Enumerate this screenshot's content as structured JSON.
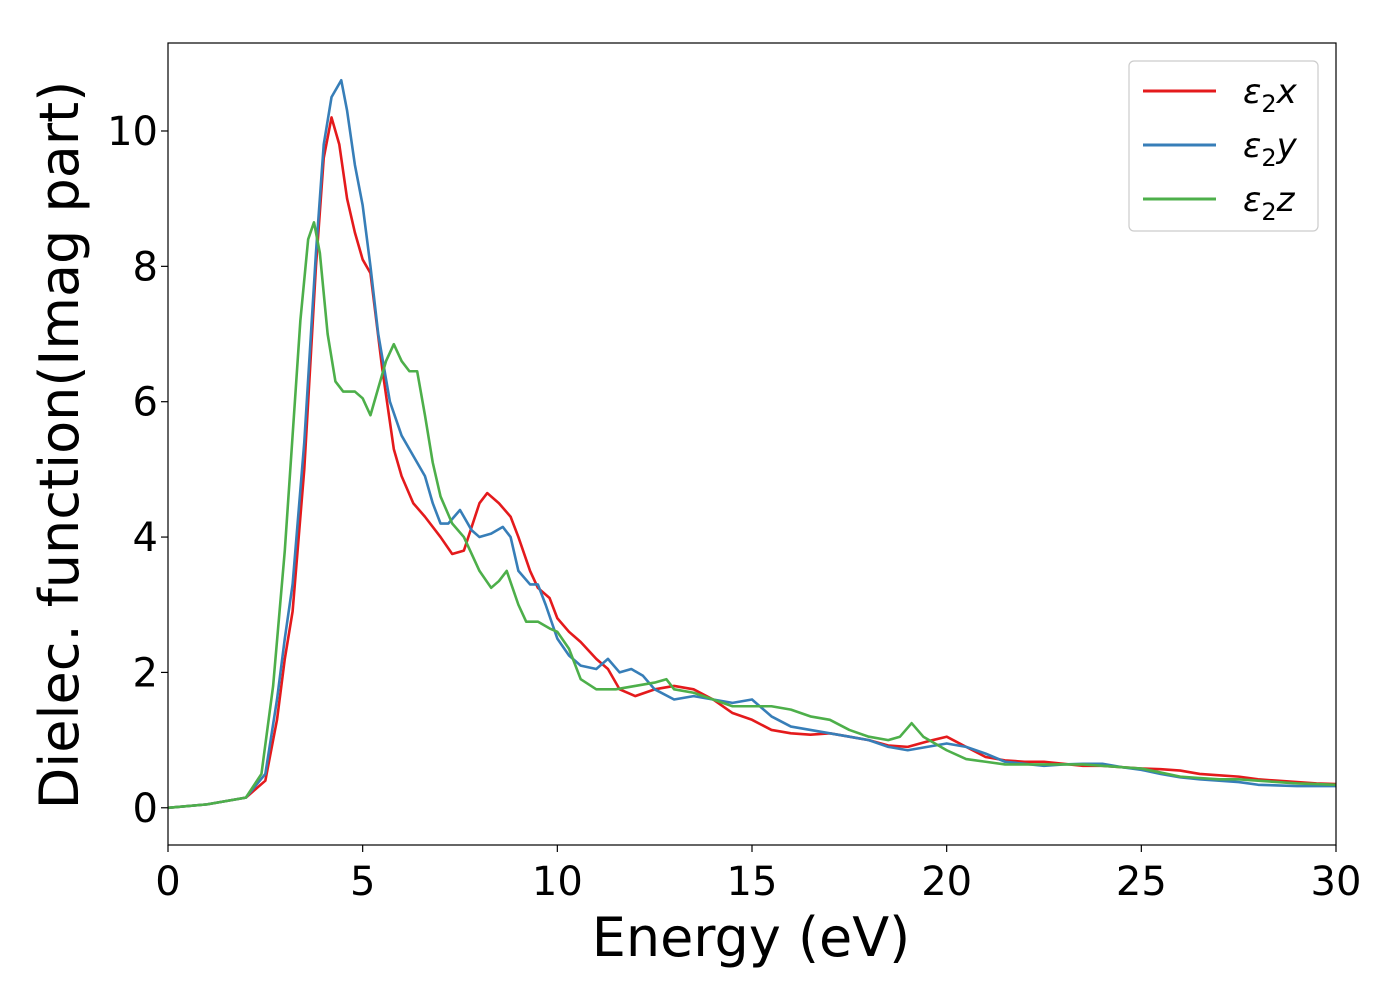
{
  "chart_data": {
    "type": "line",
    "title": "",
    "xlabel": "Energy (eV)",
    "ylabel": "Dielec. function(Imag part)",
    "xlim": [
      0,
      30
    ],
    "ylim": [
      -0.55,
      11.3
    ],
    "xticks": [
      0,
      5,
      10,
      15,
      20,
      25,
      30
    ],
    "yticks": [
      0,
      2,
      4,
      6,
      8,
      10
    ],
    "grid": false,
    "legend_position": "top-right",
    "series": [
      {
        "name": "ε₂x",
        "legend_main": "ε",
        "legend_sub": "2",
        "legend_axis": "x",
        "color": "#e41a1c",
        "points": [
          [
            0,
            0
          ],
          [
            1,
            0.05
          ],
          [
            2,
            0.15
          ],
          [
            2.5,
            0.4
          ],
          [
            2.8,
            1.3
          ],
          [
            3.0,
            2.2
          ],
          [
            3.2,
            2.9
          ],
          [
            3.5,
            5.0
          ],
          [
            3.8,
            8.0
          ],
          [
            4.0,
            9.6
          ],
          [
            4.2,
            10.2
          ],
          [
            4.4,
            9.8
          ],
          [
            4.6,
            9.0
          ],
          [
            4.8,
            8.5
          ],
          [
            5.0,
            8.1
          ],
          [
            5.2,
            7.9
          ],
          [
            5.5,
            6.5
          ],
          [
            5.8,
            5.3
          ],
          [
            6.0,
            4.9
          ],
          [
            6.3,
            4.5
          ],
          [
            6.6,
            4.3
          ],
          [
            7.0,
            4.0
          ],
          [
            7.3,
            3.75
          ],
          [
            7.6,
            3.8
          ],
          [
            8.0,
            4.5
          ],
          [
            8.2,
            4.65
          ],
          [
            8.5,
            4.5
          ],
          [
            8.8,
            4.3
          ],
          [
            9.0,
            4.0
          ],
          [
            9.3,
            3.5
          ],
          [
            9.5,
            3.25
          ],
          [
            9.8,
            3.1
          ],
          [
            10.0,
            2.8
          ],
          [
            10.3,
            2.6
          ],
          [
            10.6,
            2.45
          ],
          [
            11.0,
            2.2
          ],
          [
            11.3,
            2.05
          ],
          [
            11.6,
            1.75
          ],
          [
            12.0,
            1.65
          ],
          [
            12.5,
            1.75
          ],
          [
            13.0,
            1.8
          ],
          [
            13.5,
            1.75
          ],
          [
            14.0,
            1.6
          ],
          [
            14.5,
            1.4
          ],
          [
            15.0,
            1.3
          ],
          [
            15.5,
            1.15
          ],
          [
            16.0,
            1.1
          ],
          [
            16.5,
            1.08
          ],
          [
            17.0,
            1.1
          ],
          [
            17.5,
            1.05
          ],
          [
            18.0,
            1.0
          ],
          [
            18.5,
            0.92
          ],
          [
            19.0,
            0.9
          ],
          [
            19.5,
            0.98
          ],
          [
            20.0,
            1.05
          ],
          [
            20.5,
            0.9
          ],
          [
            21.0,
            0.75
          ],
          [
            21.5,
            0.7
          ],
          [
            22.0,
            0.68
          ],
          [
            22.5,
            0.68
          ],
          [
            23.0,
            0.65
          ],
          [
            23.5,
            0.62
          ],
          [
            24.0,
            0.62
          ],
          [
            24.5,
            0.6
          ],
          [
            25.0,
            0.58
          ],
          [
            25.5,
            0.57
          ],
          [
            26.0,
            0.55
          ],
          [
            26.5,
            0.5
          ],
          [
            27.0,
            0.48
          ],
          [
            27.5,
            0.46
          ],
          [
            28.0,
            0.42
          ],
          [
            28.5,
            0.4
          ],
          [
            29.0,
            0.38
          ],
          [
            29.5,
            0.36
          ],
          [
            30.0,
            0.35
          ]
        ]
      },
      {
        "name": "ε₂y",
        "legend_main": "ε",
        "legend_sub": "2",
        "legend_axis": "y",
        "color": "#377eb8",
        "points": [
          [
            0,
            0
          ],
          [
            1,
            0.05
          ],
          [
            2,
            0.15
          ],
          [
            2.5,
            0.5
          ],
          [
            2.8,
            1.6
          ],
          [
            3.0,
            2.5
          ],
          [
            3.2,
            3.3
          ],
          [
            3.5,
            5.4
          ],
          [
            3.8,
            8.2
          ],
          [
            4.0,
            9.8
          ],
          [
            4.2,
            10.5
          ],
          [
            4.45,
            10.75
          ],
          [
            4.6,
            10.3
          ],
          [
            4.8,
            9.5
          ],
          [
            5.0,
            8.9
          ],
          [
            5.2,
            8.0
          ],
          [
            5.4,
            7.0
          ],
          [
            5.7,
            6.0
          ],
          [
            6.0,
            5.5
          ],
          [
            6.3,
            5.2
          ],
          [
            6.6,
            4.9
          ],
          [
            6.8,
            4.5
          ],
          [
            7.0,
            4.2
          ],
          [
            7.2,
            4.2
          ],
          [
            7.5,
            4.4
          ],
          [
            7.8,
            4.1
          ],
          [
            8.0,
            4.0
          ],
          [
            8.3,
            4.05
          ],
          [
            8.6,
            4.15
          ],
          [
            8.8,
            4.0
          ],
          [
            9.0,
            3.5
          ],
          [
            9.3,
            3.3
          ],
          [
            9.5,
            3.3
          ],
          [
            9.7,
            3.0
          ],
          [
            10.0,
            2.5
          ],
          [
            10.3,
            2.25
          ],
          [
            10.6,
            2.1
          ],
          [
            11.0,
            2.05
          ],
          [
            11.3,
            2.2
          ],
          [
            11.6,
            2.0
          ],
          [
            11.9,
            2.05
          ],
          [
            12.2,
            1.95
          ],
          [
            12.5,
            1.75
          ],
          [
            13.0,
            1.6
          ],
          [
            13.5,
            1.65
          ],
          [
            14.0,
            1.6
          ],
          [
            14.5,
            1.55
          ],
          [
            15.0,
            1.6
          ],
          [
            15.5,
            1.35
          ],
          [
            16.0,
            1.2
          ],
          [
            16.5,
            1.15
          ],
          [
            17.0,
            1.1
          ],
          [
            17.5,
            1.05
          ],
          [
            18.0,
            1.0
          ],
          [
            18.5,
            0.9
          ],
          [
            19.0,
            0.85
          ],
          [
            19.5,
            0.9
          ],
          [
            20.0,
            0.95
          ],
          [
            20.5,
            0.9
          ],
          [
            21.0,
            0.8
          ],
          [
            21.5,
            0.68
          ],
          [
            22.0,
            0.65
          ],
          [
            22.5,
            0.62
          ],
          [
            23.0,
            0.64
          ],
          [
            23.5,
            0.65
          ],
          [
            24.0,
            0.65
          ],
          [
            24.5,
            0.6
          ],
          [
            25.0,
            0.56
          ],
          [
            25.5,
            0.5
          ],
          [
            26.0,
            0.45
          ],
          [
            26.5,
            0.42
          ],
          [
            27.0,
            0.4
          ],
          [
            27.5,
            0.38
          ],
          [
            28.0,
            0.34
          ],
          [
            28.5,
            0.33
          ],
          [
            29.0,
            0.32
          ],
          [
            29.5,
            0.32
          ],
          [
            30.0,
            0.32
          ]
        ]
      },
      {
        "name": "ε₂z",
        "legend_main": "ε",
        "legend_sub": "2",
        "legend_axis": "z",
        "color": "#4daf4a",
        "points": [
          [
            0,
            0
          ],
          [
            1,
            0.05
          ],
          [
            2,
            0.15
          ],
          [
            2.4,
            0.5
          ],
          [
            2.7,
            1.8
          ],
          [
            3.0,
            3.8
          ],
          [
            3.2,
            5.5
          ],
          [
            3.4,
            7.2
          ],
          [
            3.6,
            8.4
          ],
          [
            3.75,
            8.65
          ],
          [
            3.9,
            8.2
          ],
          [
            4.1,
            7.0
          ],
          [
            4.3,
            6.3
          ],
          [
            4.5,
            6.15
          ],
          [
            4.8,
            6.15
          ],
          [
            5.0,
            6.05
          ],
          [
            5.2,
            5.8
          ],
          [
            5.4,
            6.2
          ],
          [
            5.6,
            6.6
          ],
          [
            5.8,
            6.85
          ],
          [
            6.0,
            6.6
          ],
          [
            6.2,
            6.45
          ],
          [
            6.4,
            6.45
          ],
          [
            6.6,
            5.8
          ],
          [
            6.8,
            5.1
          ],
          [
            7.0,
            4.6
          ],
          [
            7.3,
            4.2
          ],
          [
            7.6,
            4.0
          ],
          [
            8.0,
            3.5
          ],
          [
            8.3,
            3.25
          ],
          [
            8.5,
            3.35
          ],
          [
            8.7,
            3.5
          ],
          [
            9.0,
            3.0
          ],
          [
            9.2,
            2.75
          ],
          [
            9.5,
            2.75
          ],
          [
            9.8,
            2.65
          ],
          [
            10.0,
            2.6
          ],
          [
            10.3,
            2.35
          ],
          [
            10.6,
            1.9
          ],
          [
            11.0,
            1.75
          ],
          [
            11.5,
            1.75
          ],
          [
            12.0,
            1.8
          ],
          [
            12.5,
            1.85
          ],
          [
            12.8,
            1.9
          ],
          [
            13.0,
            1.75
          ],
          [
            13.5,
            1.7
          ],
          [
            14.0,
            1.6
          ],
          [
            14.5,
            1.5
          ],
          [
            15.0,
            1.5
          ],
          [
            15.5,
            1.5
          ],
          [
            16.0,
            1.45
          ],
          [
            16.5,
            1.35
          ],
          [
            17.0,
            1.3
          ],
          [
            17.5,
            1.15
          ],
          [
            18.0,
            1.05
          ],
          [
            18.5,
            1.0
          ],
          [
            18.8,
            1.05
          ],
          [
            19.1,
            1.25
          ],
          [
            19.4,
            1.05
          ],
          [
            20.0,
            0.85
          ],
          [
            20.5,
            0.72
          ],
          [
            21.0,
            0.68
          ],
          [
            21.5,
            0.64
          ],
          [
            22.0,
            0.64
          ],
          [
            22.5,
            0.64
          ],
          [
            23.0,
            0.64
          ],
          [
            23.5,
            0.64
          ],
          [
            24.0,
            0.62
          ],
          [
            24.5,
            0.6
          ],
          [
            25.0,
            0.58
          ],
          [
            25.5,
            0.52
          ],
          [
            26.0,
            0.46
          ],
          [
            26.5,
            0.44
          ],
          [
            27.0,
            0.42
          ],
          [
            27.5,
            0.42
          ],
          [
            28.0,
            0.4
          ],
          [
            28.5,
            0.38
          ],
          [
            29.0,
            0.36
          ],
          [
            29.5,
            0.35
          ],
          [
            30.0,
            0.34
          ]
        ]
      }
    ]
  }
}
